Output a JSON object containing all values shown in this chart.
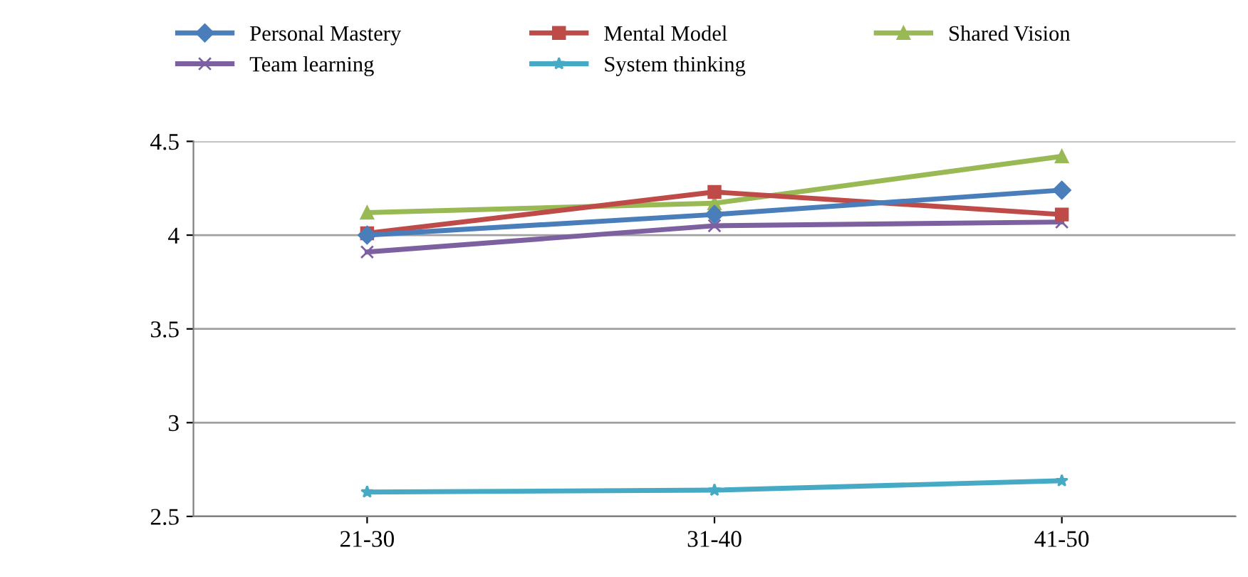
{
  "chart_data": {
    "type": "line",
    "categories": [
      "21-30",
      "31-40",
      "41-50"
    ],
    "series": [
      {
        "name": "Personal Mastery",
        "color": "#4a7ebb",
        "marker": "diamond",
        "values": [
          4.0,
          4.11,
          4.24
        ]
      },
      {
        "name": "Mental Model",
        "color": "#be4b48",
        "marker": "square",
        "values": [
          4.01,
          4.23,
          4.11
        ]
      },
      {
        "name": "Shared Vision",
        "color": "#98b954",
        "marker": "triangle",
        "values": [
          4.12,
          4.17,
          4.42
        ]
      },
      {
        "name": "Team learning",
        "color": "#7d60a0",
        "marker": "cross",
        "values": [
          3.91,
          4.05,
          4.07
        ]
      },
      {
        "name": "System thinking",
        "color": "#46aac5",
        "marker": "star",
        "values": [
          2.63,
          2.64,
          2.69
        ]
      }
    ],
    "ylim": [
      2.5,
      4.5
    ],
    "yticks": [
      2.5,
      3,
      3.5,
      4,
      4.5
    ],
    "grid": "y",
    "legend": "top",
    "line_style": "solid"
  }
}
